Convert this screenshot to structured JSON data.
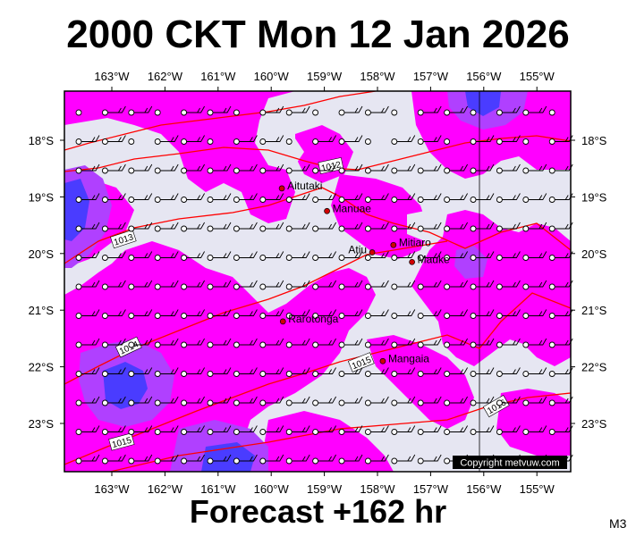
{
  "title": "2000 CKT Mon 12 Jan 2026",
  "subtitle": "Forecast +162 hr",
  "code": "M3",
  "copyright": "Copyright metvuw.com",
  "lon_ticks": [
    "163°W",
    "162°W",
    "161°W",
    "160°W",
    "159°W",
    "158°W",
    "157°W",
    "156°W",
    "155°W"
  ],
  "lat_ticks": [
    "18°S",
    "19°S",
    "20°S",
    "21°S",
    "22°S",
    "23°S"
  ],
  "places": [
    {
      "name": "Aitutaki",
      "lon": -159.8,
      "lat": -18.85
    },
    {
      "name": "Manuae",
      "lon": -158.95,
      "lat": -19.25
    },
    {
      "name": "Atiu",
      "lon": -158.1,
      "lat": -19.98
    },
    {
      "name": "Mitiaro",
      "lon": -157.7,
      "lat": -19.85
    },
    {
      "name": "Mauke",
      "lon": -157.35,
      "lat": -20.15
    },
    {
      "name": "Rarotonga",
      "lon": -159.78,
      "lat": -21.2
    },
    {
      "name": "Mangaia",
      "lon": -157.9,
      "lat": -21.9
    }
  ],
  "isobar_labels": [
    "1012",
    "1013",
    "1014",
    "1015",
    "1016"
  ],
  "colors": {
    "land_bg": "#e6e6f2",
    "magenta": "#ff00ff",
    "violet": "#b040ff",
    "blue": "#4a3cff",
    "isobar": "#ff0000"
  }
}
